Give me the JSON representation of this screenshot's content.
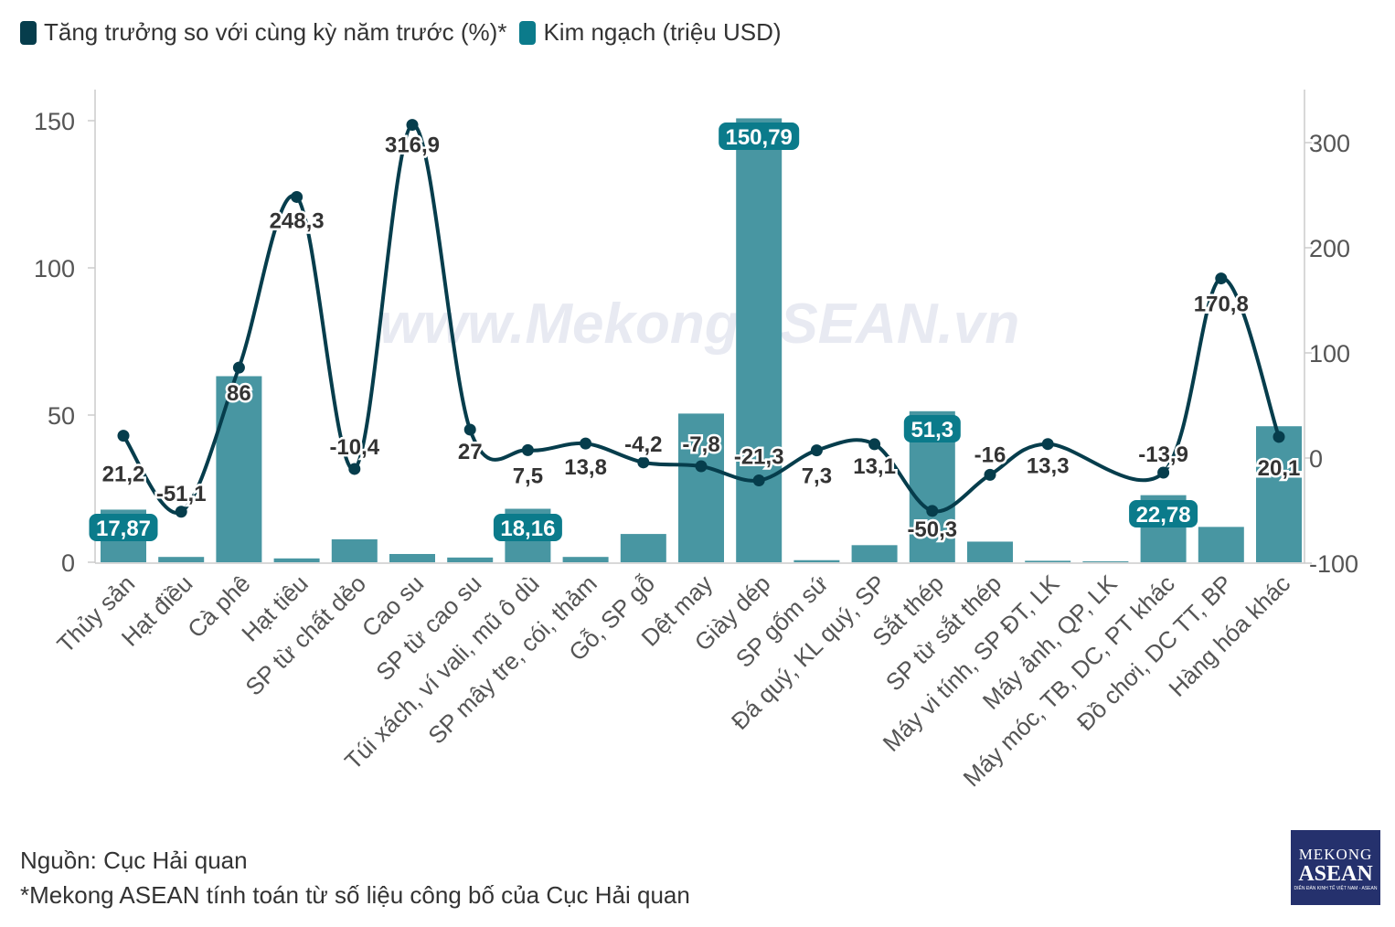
{
  "legend": {
    "line_label": "Tăng trưởng so với cùng kỳ năm trước (%)*",
    "bar_label": "Kim ngạch (triệu USD)"
  },
  "colors": {
    "line": "#063d4c",
    "bar": "#4896a2",
    "bar_label_bg": "#0b7b8b",
    "axis_text": "#555555",
    "watermark": "#e8eaf2"
  },
  "watermark": "www.MekongASEAN.vn",
  "footer": {
    "source": "Nguồn: Cục Hải quan",
    "note": "*Mekong ASEAN tính toán từ số liệu công bố của Cục Hải quan"
  },
  "logo": {
    "line1": "MEKONG",
    "line2": "ASEAN",
    "line3": "DIỄN ĐÀN KINH TẾ VIỆT NAM - ASEAN"
  },
  "chart_data": {
    "type": "bar+line",
    "categories": [
      "Thủy sản",
      "Hạt điều",
      "Cà phê",
      "Hạt tiêu",
      "SP từ chất dẻo",
      "Cao su",
      "SP từ cao su",
      "Túi xách, ví vali, mũ ô dù",
      "SP mây tre, cói, thảm",
      "Gỗ, SP gỗ",
      "Dệt may",
      "Giày dép",
      "SP gốm sứ",
      "Đá quý, KL quý, SP",
      "Sắt thép",
      "SP từ sắt thép",
      "Máy vi tính, SP ĐT, LK",
      "Máy ảnh, QP, LK",
      "Máy móc, TB, DC, PT khác",
      "Đồ chơi, DC TT, BP",
      "Hàng hóa khác"
    ],
    "bar_series": {
      "name": "Kim ngạch (triệu USD)",
      "axis": "left",
      "values": [
        17.87,
        1.8,
        63.2,
        1.3,
        7.8,
        2.8,
        1.6,
        18.16,
        1.8,
        9.6,
        50.5,
        150.79,
        0.7,
        5.8,
        51.3,
        7.0,
        0.5,
        0.3,
        22.78,
        12.0,
        46.2
      ],
      "labels": [
        "17,87",
        "",
        "",
        "",
        "",
        "",
        "",
        "18,16",
        "",
        "",
        "",
        "150,79",
        "",
        "",
        "51,3",
        "",
        "",
        "",
        "22,78",
        "",
        ""
      ]
    },
    "line_series": {
      "name": "Tăng trưởng so với cùng kỳ năm trước (%)*",
      "axis": "right",
      "values": [
        21.2,
        -51.1,
        86,
        248.3,
        -10.4,
        316.9,
        27,
        7.5,
        13.8,
        -4.2,
        -7.8,
        -21.3,
        7.3,
        13.1,
        -50.3,
        -16,
        13.3,
        null,
        -13.9,
        170.8,
        20.1
      ],
      "labels": [
        "21,2",
        "-51,1",
        "86",
        "248,3",
        "-10,4",
        "316,9",
        "27",
        "7,5",
        "13,8",
        "-4,2",
        "-7,8",
        "-21,3",
        "7,3",
        "13,1",
        "-50,3",
        "-16",
        "13,3",
        "",
        "-13,9",
        "170,8",
        "20,1"
      ]
    },
    "left_axis": {
      "min": 0,
      "max": 160,
      "ticks": [
        0,
        50,
        100,
        150
      ]
    },
    "right_axis": {
      "min": -100,
      "max": 335,
      "ticks": [
        -100,
        0,
        100,
        200,
        300
      ]
    },
    "legend_position": "top-left",
    "grid": false
  }
}
